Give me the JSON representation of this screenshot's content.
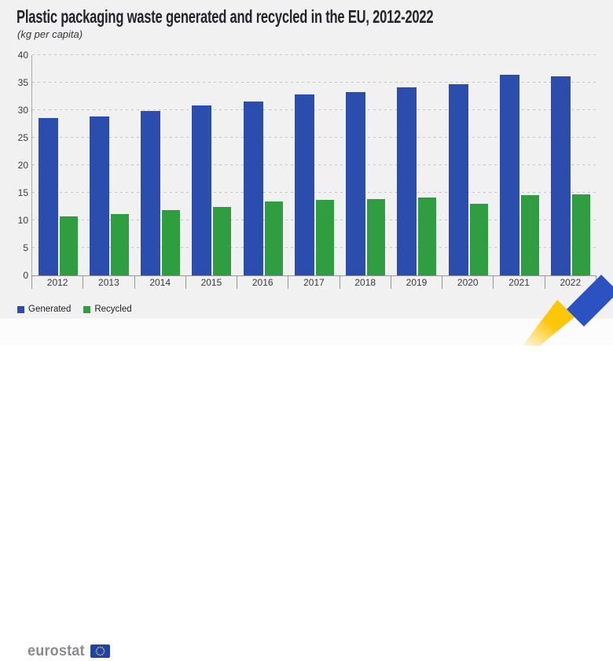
{
  "title": "Plastic packaging waste generated and recycled in the EU, 2012-2022",
  "subtitle": "(kg per capita)",
  "chart_data": {
    "type": "bar",
    "categories": [
      "2012",
      "2013",
      "2014",
      "2015",
      "2016",
      "2017",
      "2018",
      "2019",
      "2020",
      "2021",
      "2022"
    ],
    "series": [
      {
        "name": "Generated",
        "color": "#2b4dad",
        "values": [
          28.6,
          28.9,
          29.9,
          30.9,
          31.6,
          32.8,
          33.3,
          34.2,
          34.7,
          36.4,
          36.1
        ]
      },
      {
        "name": "Recycled",
        "color": "#2f9e41",
        "values": [
          10.7,
          11.1,
          11.9,
          12.5,
          13.4,
          13.7,
          13.8,
          14.1,
          13.0,
          14.6,
          14.7
        ]
      }
    ],
    "title": "Plastic packaging waste generated and recycled in the EU, 2012-2022",
    "xlabel": "",
    "ylabel": "(kg per capita)",
    "ylim": [
      0,
      40
    ],
    "yticks": [
      0,
      5,
      10,
      15,
      20,
      25,
      30,
      35,
      40
    ],
    "grid": "horizontal-dashed",
    "legend_position": "bottom-left"
  },
  "legend": {
    "items": [
      {
        "label": "Generated",
        "color": "#2b4dad"
      },
      {
        "label": "Recycled",
        "color": "#2f9e41"
      }
    ]
  },
  "footer": {
    "brand": "eurostat"
  },
  "colors": {
    "card_background": "#f1f1f2",
    "footer_background": "#fcfcfd",
    "generated_bar": "#2b4dad",
    "recycled_bar": "#2f9e41",
    "gridline": "#c7c7c9",
    "axis": "#96969a",
    "title_text": "#25242b",
    "flag_blue": "#1e44a8",
    "flag_stars": "#ffcc00",
    "ribbon_yellow": "#fdc608",
    "ribbon_gray": "#c4c4ca",
    "ribbon_blue": "#2a52c0"
  }
}
